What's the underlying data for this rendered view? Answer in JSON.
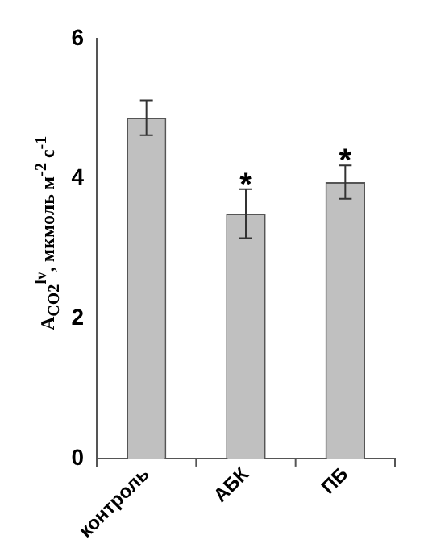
{
  "chart_data": {
    "type": "bar",
    "ylabel": "A$_{CO2}$$^{lv}$, мкмоль м$^{-2}$ с$^{-1}$",
    "categories": [
      "контроль",
      "АБК",
      "ПБ"
    ],
    "values": [
      4.87,
      3.5,
      3.95
    ],
    "errors": [
      0.25,
      0.35,
      0.24
    ],
    "color": "#c0c0c0",
    "ylim": [
      0,
      6
    ],
    "yticks": [
      0,
      2,
      4,
      6
    ],
    "grid": false,
    "annotations": [
      {
        "text": "*",
        "x": "АБК",
        "y": 3.85
      },
      {
        "text": "*",
        "x": "ПБ",
        "y": 4.19
      }
    ]
  }
}
